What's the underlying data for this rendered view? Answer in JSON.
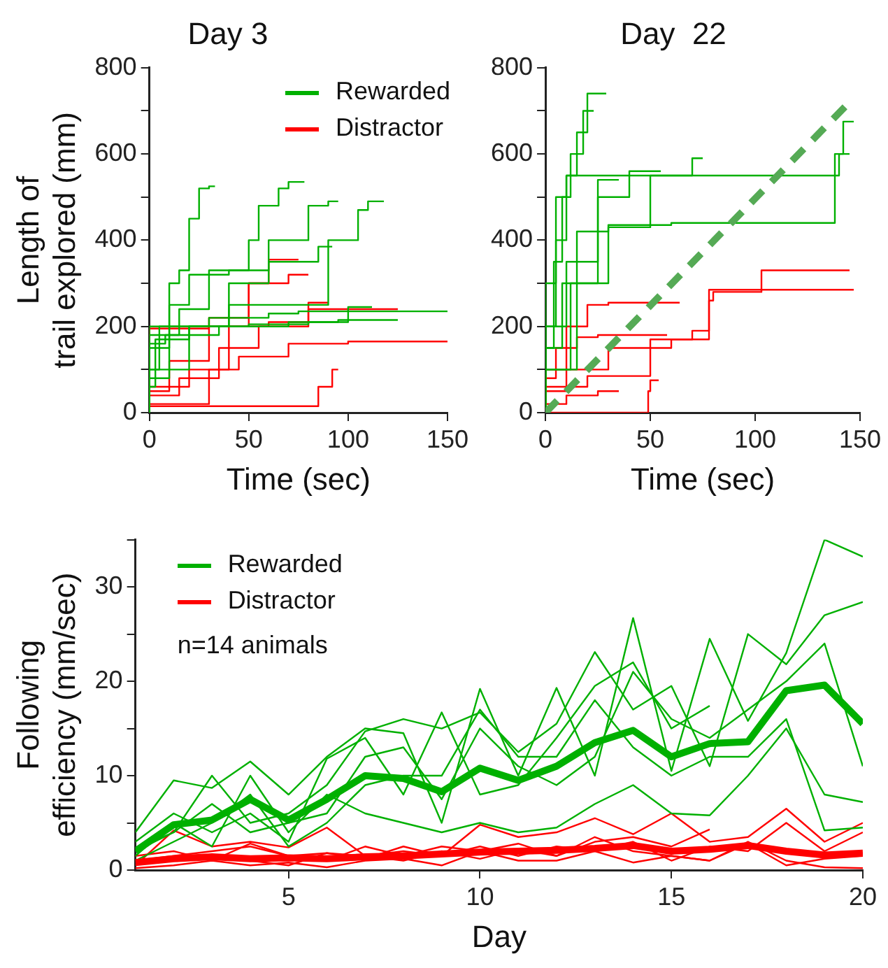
{
  "chart_data": [
    {
      "type": "step",
      "title": "Day 3",
      "xlabel": "Time (sec)",
      "ylabel": "Length of\ntrail explored (mm)",
      "xlim": [
        0,
        150
      ],
      "xticks": [
        0,
        50,
        100,
        150
      ],
      "ylim": [
        0,
        800
      ],
      "yticks": [
        0,
        {
          "value": 100,
          "label": null
        },
        200,
        {
          "value": 300,
          "label": null
        },
        400,
        {
          "value": 500,
          "label": null
        },
        600,
        {
          "value": 700,
          "label": null
        },
        800
      ],
      "grid": false,
      "legend": "top right",
      "marker": "none",
      "series": [
        {
          "name": "Rewarded",
          "color": "#00b000",
          "x": [
            0,
            5,
            10,
            15,
            20,
            25,
            30,
            33
          ],
          "values": [
            0,
            100,
            200,
            300,
            330,
            450,
            520,
            525
          ]
        },
        {
          "color": "#00b000",
          "x": [
            0,
            10,
            20,
            40,
            60,
            80,
            90,
            95
          ],
          "values": [
            0,
            150,
            250,
            320,
            330,
            400,
            480,
            490
          ]
        },
        {
          "color": "#00b000",
          "x": [
            0,
            15,
            30,
            50,
            55,
            65,
            70,
            78
          ],
          "values": [
            0,
            180,
            240,
            330,
            400,
            480,
            520,
            535
          ]
        },
        {
          "color": "#00b000",
          "x": [
            0,
            20,
            40,
            60,
            90,
            105,
            110,
            118
          ],
          "values": [
            0,
            100,
            200,
            250,
            250,
            400,
            470,
            490
          ]
        },
        {
          "color": "#00b000",
          "x": [
            0,
            5,
            30,
            60,
            75,
            90,
            150
          ],
          "values": [
            0,
            200,
            200,
            220,
            230,
            235,
            235
          ]
        },
        {
          "color": "#00b000",
          "x": [
            0,
            10,
            40,
            60,
            85,
            92
          ],
          "values": [
            0,
            80,
            200,
            300,
            350,
            385
          ]
        },
        {
          "color": "#00b000",
          "x": [
            0,
            8,
            35,
            70,
            100,
            112
          ],
          "values": [
            0,
            160,
            180,
            200,
            210,
            245
          ]
        },
        {
          "color": "#00b000",
          "x": [
            0,
            3,
            20,
            50,
            80,
            95,
            125
          ],
          "values": [
            0,
            60,
            170,
            200,
            205,
            210,
            215
          ]
        },
        {
          "name": "Distractor",
          "color": "#ff0000",
          "x": [
            0,
            3,
            30,
            60,
            80,
            125
          ],
          "values": [
            0,
            195,
            195,
            200,
            210,
            240
          ]
        },
        {
          "color": "#ff0000",
          "x": [
            0,
            10,
            30,
            50,
            70,
            80
          ],
          "values": [
            0,
            50,
            120,
            220,
            300,
            320
          ]
        },
        {
          "color": "#ff0000",
          "x": [
            0,
            20,
            40,
            50,
            60,
            75
          ],
          "values": [
            0,
            60,
            100,
            200,
            300,
            355
          ]
        },
        {
          "color": "#ff0000",
          "x": [
            0,
            30,
            45,
            70,
            100,
            150
          ],
          "values": [
            0,
            20,
            100,
            130,
            160,
            165
          ]
        },
        {
          "color": "#ff0000",
          "x": [
            0,
            65,
            85,
            92,
            95
          ],
          "values": [
            0,
            15,
            15,
            60,
            100
          ]
        },
        {
          "color": "#ff0000",
          "x": [
            0,
            15,
            35,
            55,
            80,
            90
          ],
          "values": [
            0,
            40,
            80,
            150,
            200,
            255
          ]
        }
      ]
    },
    {
      "type": "step",
      "title": "Day  22",
      "xlabel": "Time (sec)",
      "xlim": [
        0,
        150
      ],
      "xticks": [
        0,
        50,
        100,
        150
      ],
      "ylim": [
        0,
        800
      ],
      "yticks": [
        0,
        {
          "value": 100,
          "label": null
        },
        200,
        {
          "value": 300,
          "label": null
        },
        400,
        {
          "value": 500,
          "label": null
        },
        600,
        {
          "value": 700,
          "label": null
        },
        800
      ],
      "grid": false,
      "marker": "none",
      "series": [
        {
          "color": "#00b000",
          "x": [
            0,
            5,
            10,
            15,
            20,
            25,
            29
          ],
          "values": [
            0,
            200,
            400,
            550,
            650,
            740,
            740
          ]
        },
        {
          "color": "#00b000",
          "x": [
            0,
            4,
            8,
            12,
            18,
            23
          ],
          "values": [
            0,
            150,
            350,
            500,
            600,
            700
          ]
        },
        {
          "color": "#00b000",
          "x": [
            0,
            5,
            10,
            20,
            30,
            140,
            145
          ],
          "values": [
            0,
            300,
            500,
            550,
            550,
            550,
            600
          ]
        },
        {
          "color": "#00b000",
          "x": [
            0,
            8,
            15,
            30,
            60,
            138,
            142,
            147
          ],
          "values": [
            0,
            150,
            300,
            420,
            435,
            440,
            600,
            675
          ]
        },
        {
          "color": "#00b000",
          "x": [
            0,
            15,
            30,
            50,
            70,
            75
          ],
          "values": [
            0,
            100,
            300,
            430,
            550,
            590
          ]
        },
        {
          "color": "#00b000",
          "x": [
            0,
            10,
            25,
            40,
            55
          ],
          "values": [
            0,
            200,
            350,
            500,
            560
          ]
        },
        {
          "color": "#00b000",
          "x": [
            0,
            12,
            25,
            35
          ],
          "values": [
            0,
            100,
            300,
            540
          ]
        },
        {
          "color": "#ff0000",
          "x": [
            0,
            10,
            30,
            60,
            78,
            80,
            103,
            127,
            145
          ],
          "values": [
            0,
            50,
            100,
            150,
            170,
            260,
            280,
            330,
            330
          ]
        },
        {
          "color": "#ff0000",
          "x": [
            0,
            20,
            50,
            70,
            78,
            147
          ],
          "values": [
            0,
            60,
            85,
            170,
            190,
            285
          ]
        },
        {
          "color": "#ff0000",
          "x": [
            0,
            10,
            20,
            30,
            64
          ],
          "values": [
            0,
            100,
            200,
            250,
            255
          ]
        },
        {
          "color": "#ff0000",
          "x": [
            0,
            5,
            15,
            25,
            58
          ],
          "values": [
            0,
            80,
            150,
            175,
            180
          ]
        },
        {
          "color": "#ff0000",
          "x": [
            0,
            10,
            25,
            35
          ],
          "values": [
            0,
            20,
            40,
            50
          ]
        },
        {
          "color": "#ff0000",
          "x": [
            0,
            49,
            50,
            54
          ],
          "values": [
            0,
            0,
            50,
            75
          ]
        },
        {
          "type": "line",
          "line_style": "dashed",
          "color": "#55aa55",
          "x": [
            0,
            145
          ],
          "values": [
            0,
            720
          ]
        }
      ]
    },
    {
      "type": "line",
      "xlabel": "Day",
      "ylabel": "Following\nefficiency (mm/sec)",
      "x": [
        1,
        2,
        3,
        4,
        5,
        6,
        7,
        8,
        9,
        10,
        11,
        12,
        13,
        14,
        15,
        16,
        17,
        18,
        19,
        20
      ],
      "xlim": [
        1,
        20
      ],
      "xticks": [
        5,
        10,
        15,
        20
      ],
      "ylim": [
        0,
        35
      ],
      "yticks": [
        0,
        {
          "value": 5,
          "label": null
        },
        10,
        {
          "value": 15,
          "label": null
        },
        20,
        {
          "value": 25,
          "label": null
        },
        30,
        {
          "value": 35,
          "label": null
        }
      ],
      "grid": false,
      "legend": "top left",
      "marker": "none",
      "annotations": [
        "n=14 animals"
      ],
      "series": [
        {
          "color": "#00b000",
          "values": [
            4,
            9.5,
            8.7,
            11.5,
            8,
            12,
            15,
            14.5,
            5,
            19.2,
            10,
            19.3,
            10,
            26.7,
            10.5,
            24.5,
            15.8,
            23,
            35,
            33.2
          ]
        },
        {
          "color": "#00b000",
          "values": [
            2,
            4,
            10,
            5,
            6,
            9,
            14.7,
            16,
            15,
            16.7,
            12.5,
            15.5,
            23.1,
            17,
            19.5,
            11,
            25,
            21.8,
            27,
            28.4
          ]
        },
        {
          "color": "#00b000",
          "values": [
            1.5,
            5,
            2.5,
            10,
            4,
            8,
            6,
            5,
            4,
            5,
            4,
            4.5,
            7,
            9,
            6,
            5.8,
            10,
            15,
            8,
            7.2
          ]
        },
        {
          "color": "#00b000",
          "values": [
            3,
            6,
            4,
            6,
            3,
            11.8,
            14,
            8,
            16.7,
            8,
            9,
            14,
            19.5,
            22,
            15,
            17.4,
            null,
            null,
            null,
            null
          ]
        },
        {
          "color": "#00b000",
          "values": [
            2.3,
            4,
            7,
            4,
            5,
            6,
            12,
            13,
            7.5,
            15,
            11,
            9,
            12,
            21,
            16,
            14,
            17,
            20,
            24,
            11
          ]
        },
        {
          "color": "#00b000",
          "values": [
            1,
            3,
            5,
            8,
            2.5,
            5,
            9,
            10,
            10,
            17,
            12,
            12,
            18,
            13,
            10,
            12,
            12,
            16,
            4.2,
            4.5
          ]
        },
        {
          "color": "#ff0000",
          "values": [
            0.5,
            4.2,
            2.5,
            3,
            2.4,
            4.5,
            1.5,
            2,
            1.5,
            4.8,
            3.5,
            4,
            5.5,
            3.8,
            6,
            3,
            3.5,
            6.5,
            3,
            5
          ]
        },
        {
          "color": "#ff0000",
          "values": [
            1.5,
            2,
            1,
            2.8,
            1.5,
            1,
            2.5,
            1.5,
            2.5,
            2,
            2.8,
            1.5,
            3,
            3.5,
            2.5,
            4.3,
            null,
            null,
            null,
            null
          ]
        },
        {
          "color": "#ff0000",
          "values": [
            0.2,
            0.5,
            1,
            0.5,
            0.8,
            0.3,
            1,
            1.2,
            0.5,
            2,
            1,
            1,
            2,
            0.8,
            1.5,
            1,
            3,
            1,
            0.3,
            0.2
          ]
        },
        {
          "color": "#ff0000",
          "values": [
            1,
            1.5,
            2,
            2.5,
            1.5,
            1.8,
            1.2,
            2.5,
            1.5,
            2.5,
            1.5,
            2.5,
            2,
            3,
            1,
            2.5,
            2,
            5,
            2,
            4
          ]
        },
        {
          "color": "#ff0000",
          "values": [
            0.8,
            1,
            1.5,
            1,
            0.5,
            1.8,
            1.5,
            1,
            2,
            1.2,
            2.2,
            1.5,
            3.5,
            2,
            1.5,
            1,
            2.8,
            0.5,
            1.2,
            1.5
          ]
        },
        {
          "name": "Rewarded",
          "color": "#00b000",
          "values": [
            2,
            4.8,
            5.3,
            7.5,
            5.3,
            7.5,
            10,
            9.7,
            8.3,
            10.8,
            9.5,
            11,
            13.5,
            14.8,
            12,
            13.4,
            13.6,
            19,
            19.6,
            15.5
          ]
        },
        {
          "name": "Distractor",
          "color": "#ff0000",
          "values": [
            0.8,
            1.2,
            1.4,
            1.2,
            1.3,
            1.2,
            1.4,
            1.5,
            1.7,
            1.9,
            2,
            2.1,
            2.3,
            2.6,
            2,
            2.2,
            2.6,
            2,
            1.6,
            1.8
          ]
        }
      ]
    }
  ]
}
